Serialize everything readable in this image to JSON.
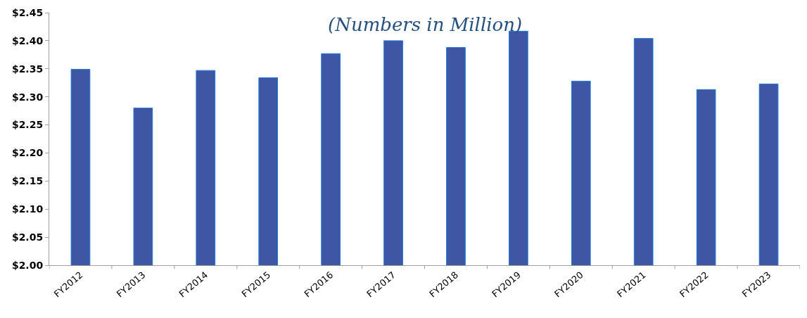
{
  "chart_data": {
    "type": "bar",
    "title": "(Numbers in Million)",
    "categories": [
      "FY2012",
      "FY2013",
      "FY2014",
      "FY2015",
      "FY2016",
      "FY2017",
      "FY2018",
      "FY2019",
      "FY2020",
      "FY2021",
      "FY2022",
      "FY2023"
    ],
    "values": [
      2.349,
      2.28,
      2.347,
      2.334,
      2.377,
      2.4,
      2.388,
      2.417,
      2.328,
      2.404,
      2.313,
      2.323
    ],
    "color": "#3f56a5",
    "ylim": [
      2.0,
      2.45
    ],
    "yticks": [
      {
        "value": 2.0,
        "label": "$2.00"
      },
      {
        "value": 2.05,
        "label": "$2.05"
      },
      {
        "value": 2.1,
        "label": "$2.10"
      },
      {
        "value": 2.15,
        "label": "$2.15"
      },
      {
        "value": 2.2,
        "label": "$2.20"
      },
      {
        "value": 2.25,
        "label": "$2.25"
      },
      {
        "value": 2.3,
        "label": "$2.30"
      },
      {
        "value": 2.35,
        "label": "$2.35"
      },
      {
        "value": 2.4,
        "label": "$2.40"
      },
      {
        "value": 2.45,
        "label": "$2.45"
      }
    ]
  }
}
